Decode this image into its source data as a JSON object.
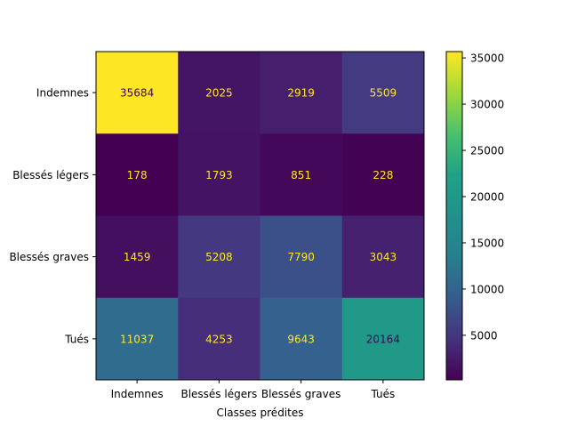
{
  "chart_data": {
    "type": "heatmap",
    "title": "",
    "xlabel": "Classes prédites",
    "ylabel": "",
    "x_categories": [
      "Indemnes",
      "Blessés légers",
      "Blessés graves",
      "Tués"
    ],
    "y_categories": [
      "Indemnes",
      "Blessés légers",
      "Blessés graves",
      "Tués"
    ],
    "values": [
      [
        35684,
        2025,
        2919,
        5509
      ],
      [
        178,
        1793,
        851,
        228
      ],
      [
        1459,
        5208,
        7790,
        3043
      ],
      [
        11037,
        4253,
        9643,
        20164
      ]
    ],
    "colormap": "viridis",
    "color_range": [
      178,
      35684
    ],
    "colorbar_ticks": [
      5000,
      10000,
      15000,
      20000,
      25000,
      30000,
      35000
    ],
    "cell_text_colors": {
      "light": "#fde725",
      "dark": "#440154"
    }
  }
}
